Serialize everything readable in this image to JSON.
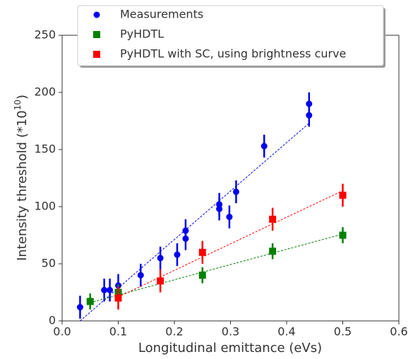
{
  "chart_data": {
    "type": "scatter",
    "xlabel": "Longitudinal emittance (eVs)",
    "ylabel": {
      "base": "Intensity threshold (*10",
      "superscript": "10",
      "end": ")"
    },
    "xlim": [
      0,
      0.6
    ],
    "ylim": [
      0,
      250
    ],
    "xticks": [
      {
        "value": 0,
        "label": "0.0"
      },
      0.1,
      0.2,
      0.3,
      0.4,
      0.5,
      0.6
    ],
    "yticks": [
      0,
      50,
      100,
      150,
      200,
      250
    ],
    "legend": "upper center",
    "series": [
      {
        "name": "Measurements",
        "color": "#0000ee",
        "marker": "circle",
        "x": [
          0.032,
          0.075,
          0.085,
          0.1,
          0.14,
          0.175,
          0.205,
          0.22,
          0.22,
          0.28,
          0.28,
          0.298,
          0.31,
          0.36,
          0.44,
          0.44
        ],
        "values": [
          12,
          27,
          27,
          31,
          40,
          55,
          58,
          79,
          72,
          102,
          98,
          91,
          113,
          153,
          190,
          180
        ],
        "errors": [
          10,
          10,
          10,
          10,
          10,
          10,
          10,
          10,
          10,
          10,
          10,
          10,
          10,
          10,
          10,
          10
        ],
        "fit": {
          "x": [
            0.032,
            0.44
          ],
          "y": [
            0,
            173
          ]
        }
      },
      {
        "name": "PyHDTL",
        "color": "#008000",
        "marker": "square",
        "x": [
          0.05,
          0.1,
          0.25,
          0.375,
          0.5
        ],
        "values": [
          17,
          25,
          40,
          61,
          75
        ],
        "errors": [
          7,
          7,
          7,
          7,
          7
        ],
        "fit": {
          "x": [
            0.05,
            0.5
          ],
          "y": [
            16,
            76
          ]
        }
      },
      {
        "name": "PyHDTL with SC, using brightness curve",
        "color": "#ff0000",
        "marker": "square",
        "x": [
          0.1,
          0.175,
          0.25,
          0.375,
          0.5
        ],
        "values": [
          20,
          35,
          60,
          89,
          110
        ],
        "errors": [
          10,
          10,
          10,
          10,
          10
        ],
        "fit": {
          "x": [
            0.1,
            0.5
          ],
          "y": [
            21,
            114
          ]
        }
      }
    ]
  }
}
